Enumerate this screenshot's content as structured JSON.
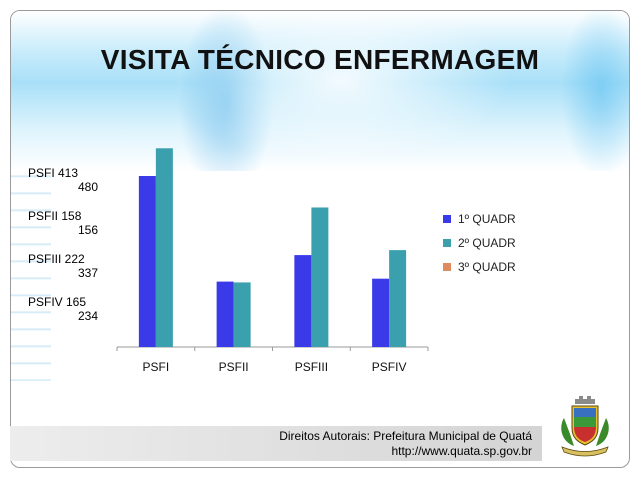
{
  "title": "VISITA TÉCNICO ENFERMAGEM",
  "side_labels": [
    {
      "line1": "PSFI 413",
      "line2": "480"
    },
    {
      "line1": "PSFII 158",
      "line2": "156"
    },
    {
      "line1": "PSFIII 222",
      "line2": "337"
    },
    {
      "line1": "PSFIV 165",
      "line2": "234"
    }
  ],
  "chart_data": {
    "type": "bar",
    "categories": [
      "PSFI",
      "PSFII",
      "PSFIII",
      "PSFIV"
    ],
    "series": [
      {
        "name": "1º QUADR",
        "values": [
          413,
          158,
          222,
          165
        ],
        "color": "#3a3ae8"
      },
      {
        "name": "2º QUADR",
        "values": [
          480,
          156,
          337,
          234
        ],
        "color": "#3aa0ae"
      },
      {
        "name": "3º QUADR",
        "values": [
          0,
          0,
          0,
          0
        ],
        "color": "#e08a60"
      }
    ],
    "ylim": [
      0,
      500
    ],
    "grid": false,
    "legend_position": "right"
  },
  "footer": {
    "copyright": "Direitos Autorais: Prefeitura Municipal de Quatá",
    "url": "http://www.quata.sp.gov.br"
  },
  "colors": {
    "series1": "#3a3ae8",
    "series2": "#3aa0ae",
    "series3": "#e08a60",
    "footer_bg": "#dcdcdc"
  }
}
